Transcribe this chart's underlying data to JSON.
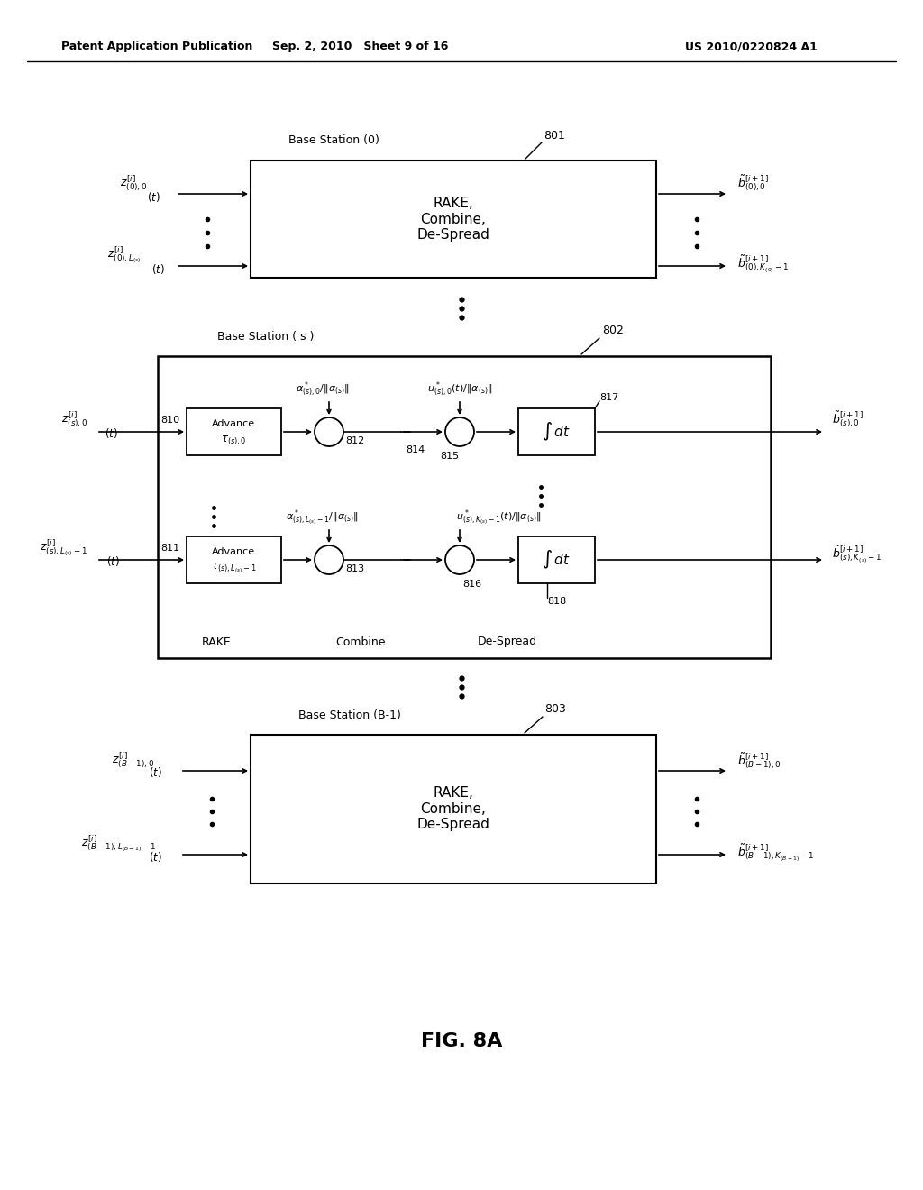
{
  "bg_color": "#ffffff",
  "header_left": "Patent Application Publication",
  "header_center": "Sep. 2, 2010   Sheet 9 of 16",
  "header_right": "US 2010/0220824 A1",
  "figure_label": "FIG. 8A"
}
